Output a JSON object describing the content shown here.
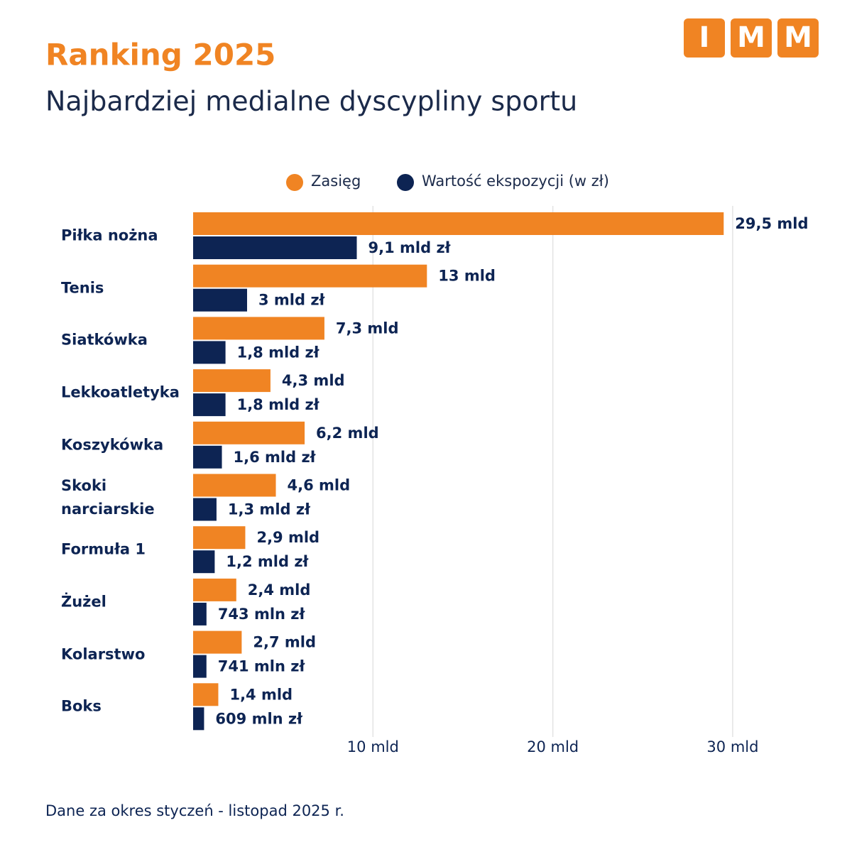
{
  "logo": [
    "I",
    "M",
    "M"
  ],
  "chart_data": {
    "type": "hbar",
    "title": "Ranking 2025",
    "subtitle": "Najbardziej medialne dyscypliny sportu",
    "footnote": "Dane za okres styczeń - listopad 2025 r.",
    "categories": [
      "Piłka nożna",
      "Tenis",
      "Siatkówka",
      "Lekkoatletyka",
      "Koszykówka",
      "Skoki narciarskie",
      "Formuła 1",
      "Żużel",
      "Kolarstwo",
      "Boks"
    ],
    "series": [
      {
        "name": "Zasięg",
        "color": "#f08423",
        "values": [
          29.5,
          13,
          7.3,
          4.3,
          6.2,
          4.6,
          2.9,
          2.4,
          2.7,
          1.4
        ],
        "value_labels": [
          "29,5 mld",
          "13 mld",
          "7,3 mld",
          "4,3 mld",
          "6,2 mld",
          "4,6 mld",
          "2,9 mld",
          "2,4 mld",
          "2,7 mld",
          "1,4 mld"
        ]
      },
      {
        "name": "Wartość ekspozycji (w zł)",
        "color": "#0d2453",
        "values": [
          9.1,
          3,
          1.8,
          1.8,
          1.6,
          1.3,
          1.2,
          0.743,
          0.741,
          0.609
        ],
        "value_labels": [
          "9,1 mld zł",
          "3 mld zł",
          "1,8 mld zł",
          "1,8 mld zł",
          "1,6 mld zł",
          "1,3 mld zł",
          "1,2 mld zł",
          "743 mln zł",
          "741 mln zł",
          "609 mln zł"
        ]
      }
    ],
    "xlim": [
      0,
      35
    ],
    "xticks": [
      {
        "value": 10,
        "label": "10 mld"
      },
      {
        "value": 20,
        "label": "20 mld"
      },
      {
        "value": 30,
        "label": "30 mld"
      }
    ],
    "grid": true,
    "legend": "top"
  }
}
